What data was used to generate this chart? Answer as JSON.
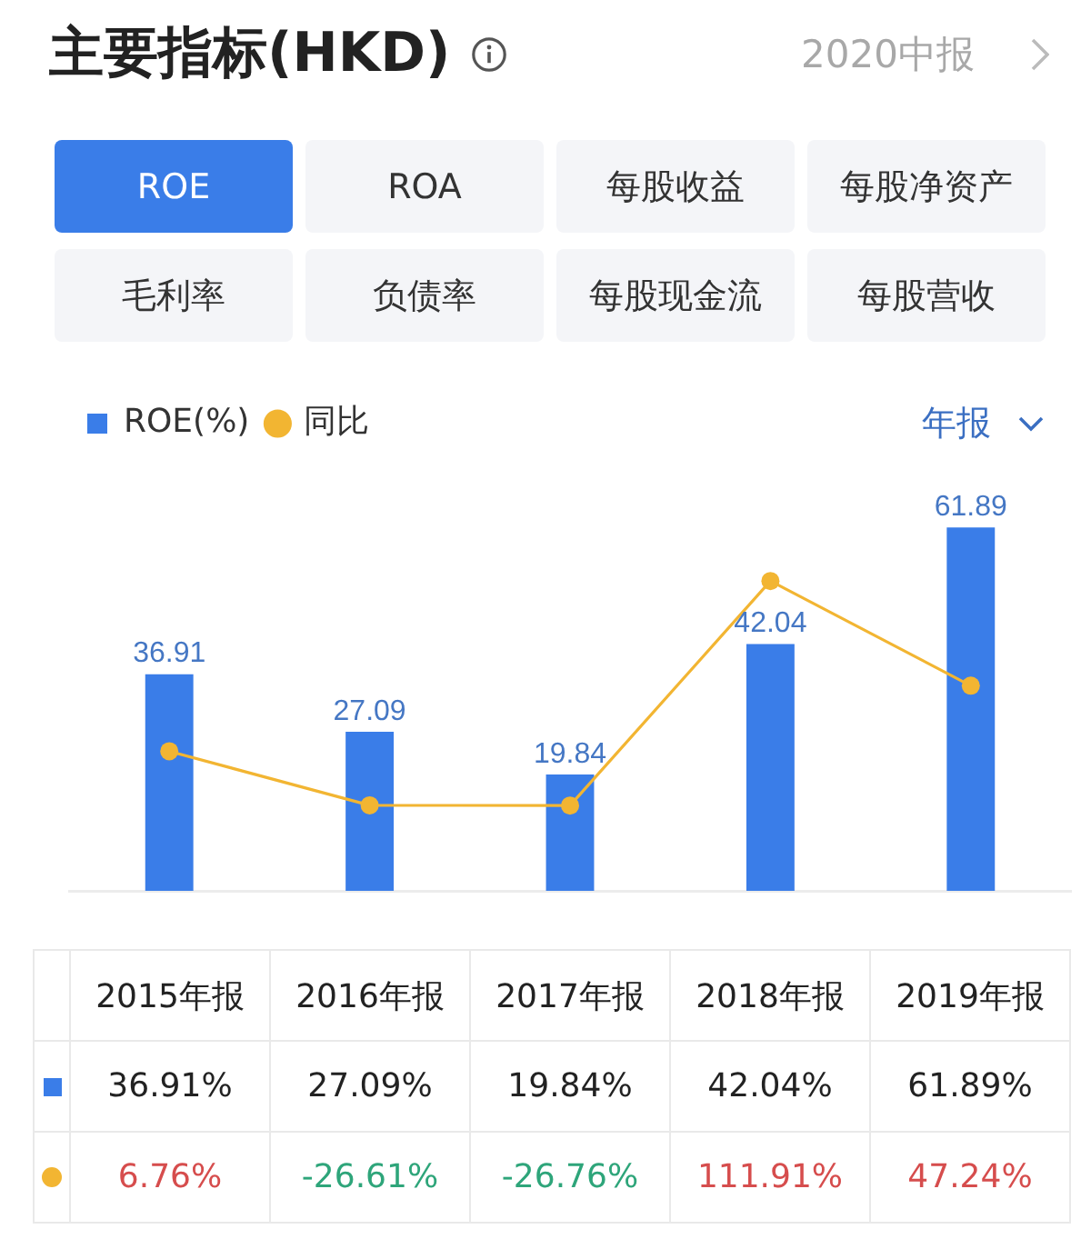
{
  "chart_data": {
    "type": "bar",
    "title": "主要指标(HKD)",
    "annotations": [
      "2020中报",
      "ROE",
      "ROA",
      "每股收益",
      "每股净资产",
      "毛利率",
      "负债率",
      "每股现金流",
      "每股营收",
      "年报",
      {
        "text": "36.91",
        "x": "2015年报",
        "y": 36.91
      },
      {
        "text": "27.09",
        "x": "2016年报",
        "y": 27.09
      },
      {
        "text": "19.84",
        "x": "2017年报",
        "y": 19.84
      },
      {
        "text": "42.04",
        "x": "2018年报",
        "y": 42.04
      },
      {
        "text": "61.89",
        "x": "2019年报",
        "y": 61.89
      }
    ],
    "categories": [
      "2015年报",
      "2016年报",
      "2017年报",
      "2018年报",
      "2019年报"
    ],
    "series": [
      {
        "name": "ROE(%)",
        "color": "#3a7de8",
        "values": [
          36.91,
          27.09,
          19.84,
          42.04,
          61.89
        ],
        "value_labels": [
          "36.91%",
          "27.09%",
          "19.84%",
          "42.04%",
          "61.89%"
        ]
      },
      {
        "name": "同比",
        "type": "line",
        "axis": "y2",
        "color": "#f2b532",
        "marker": "circle",
        "values": [
          6.76,
          -26.61,
          -26.76,
          111.91,
          47.24
        ],
        "value_labels": [
          "6.76%",
          "-26.61%",
          "-26.76%",
          "111.91%",
          "47.24%"
        ]
      }
    ],
    "legend": "top left",
    "tick_labels": false
  }
}
